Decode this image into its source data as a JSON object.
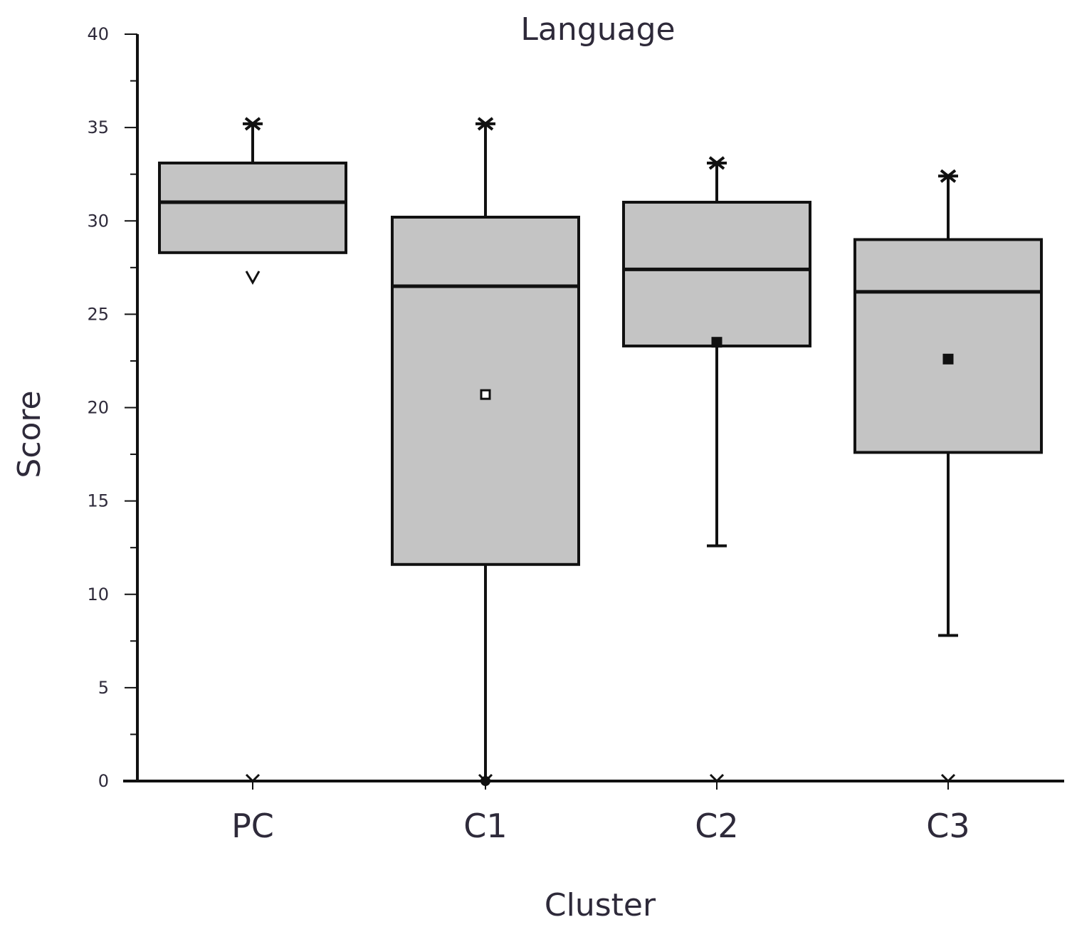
{
  "chart_data": {
    "type": "box",
    "title": "Language",
    "xlabel": "Cluster",
    "ylabel": "Score",
    "ylim": [
      0,
      40
    ],
    "yticks": [
      0,
      5,
      10,
      15,
      20,
      25,
      30,
      35,
      40
    ],
    "ytick_labels": [
      "0",
      "5",
      "10",
      "15",
      "20",
      "25",
      "30",
      "35",
      "40"
    ],
    "categories": [
      "PC",
      "C1",
      "C2",
      "C3"
    ],
    "boxes": [
      {
        "category": "PC",
        "whisker_low": 28.3,
        "q1": 28.3,
        "median": 31.0,
        "q3": 33.1,
        "whisker_high": 35.2,
        "mean": null,
        "max_marker": 35.2,
        "min_marker": 27.0,
        "x_axis_marker": 0
      },
      {
        "category": "C1",
        "whisker_low": 0.0,
        "q1": 11.6,
        "median": 26.5,
        "q3": 30.2,
        "whisker_high": 35.2,
        "mean": 20.7,
        "max_marker": 35.2,
        "min_marker": 0.0,
        "x_axis_marker": 0
      },
      {
        "category": "C2",
        "whisker_low": 12.6,
        "q1": 23.3,
        "median": 27.4,
        "q3": 31.0,
        "whisker_high": 33.1,
        "mean": 23.5,
        "max_marker": 33.1,
        "min_marker": null,
        "x_axis_marker": 0
      },
      {
        "category": "C3",
        "whisker_low": 7.8,
        "q1": 17.6,
        "median": 26.2,
        "q3": 29.0,
        "whisker_high": 32.4,
        "mean": 22.6,
        "max_marker": 32.4,
        "min_marker": null,
        "x_axis_marker": 0
      }
    ],
    "box_fill": "#c4c4c4",
    "line_color": "#111111",
    "grid": false,
    "legend": "none"
  }
}
